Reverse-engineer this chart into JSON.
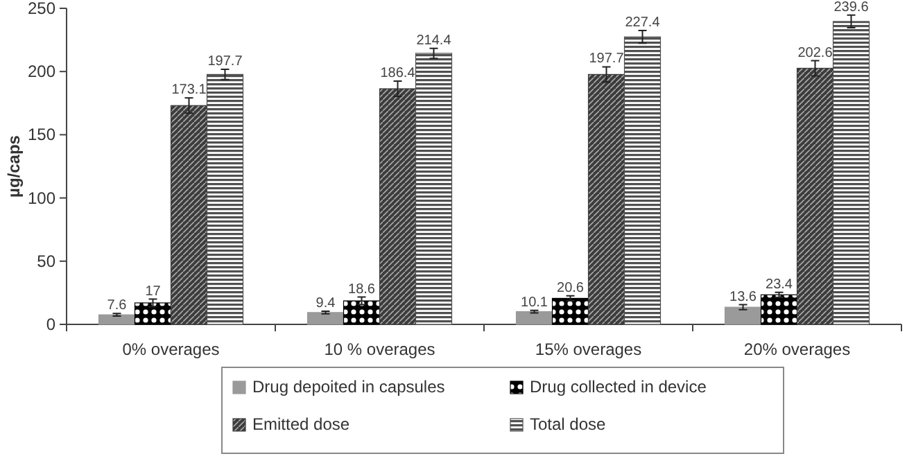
{
  "chart_data": {
    "type": "bar",
    "ylabel": "µg/caps",
    "categories": [
      "0% overages",
      "10 % overages",
      "15% overages",
      "20% overages"
    ],
    "ylim": [
      0,
      250
    ],
    "yticks": [
      0,
      50,
      100,
      150,
      200,
      250
    ],
    "grid": false,
    "legend": "bottom",
    "data_labels": true,
    "series": [
      {
        "name": "Drug depoited in capsules",
        "color": "#9a9a9a",
        "values": [
          7.6,
          9.4,
          10.1,
          13.6
        ],
        "errors": [
          1,
          1,
          1,
          2
        ]
      },
      {
        "name": "Drug collected in device",
        "color": "#000000",
        "values": [
          17,
          18.6,
          20.6,
          23.4
        ],
        "errors": [
          3,
          3,
          2,
          2
        ]
      },
      {
        "name": "Emitted dose",
        "color": "#3c3c3c",
        "values": [
          173.1,
          186.4,
          197.7,
          202.6
        ],
        "errors": [
          6,
          6,
          6,
          6
        ]
      },
      {
        "name": "Total dose",
        "color": "#505050",
        "values": [
          197.7,
          214.4,
          227.4,
          239.6
        ],
        "errors": [
          4,
          4,
          5,
          5
        ]
      }
    ]
  }
}
